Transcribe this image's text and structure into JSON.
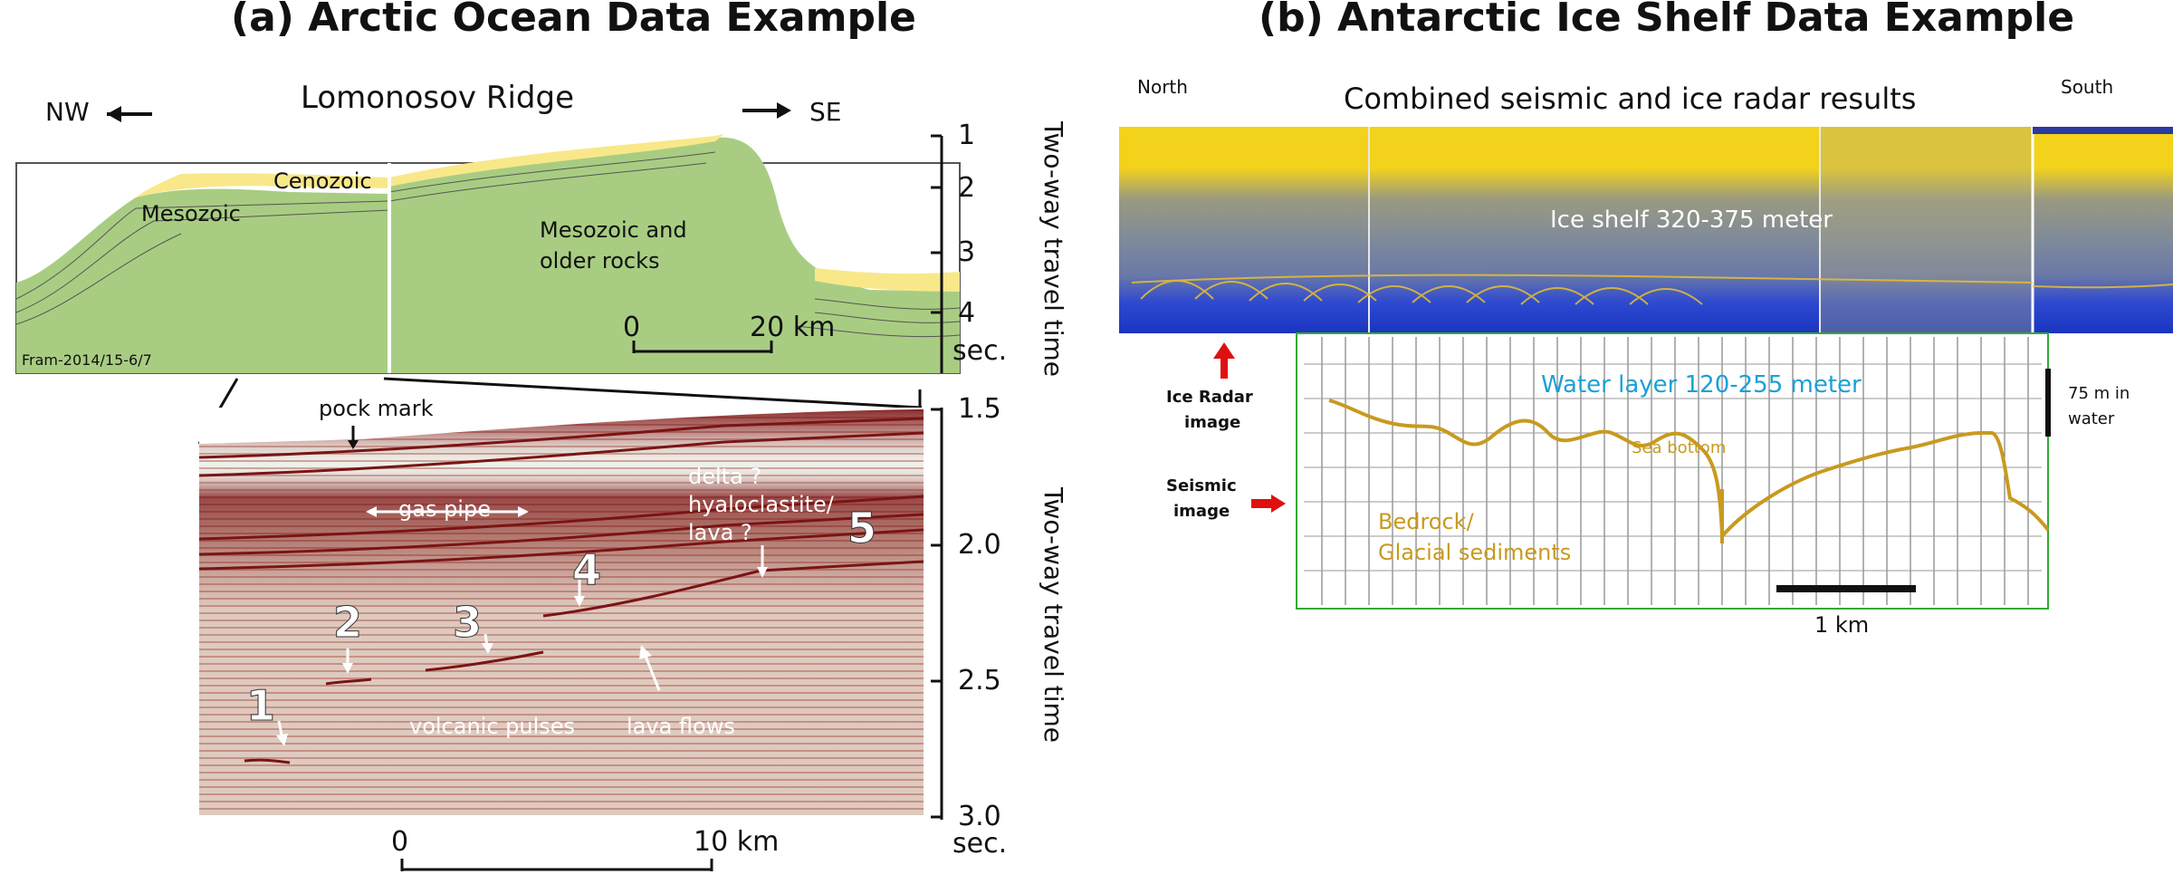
{
  "panel_a": {
    "title": "(a) Arctic Ocean Data Example",
    "top_section": {
      "title": "Lomonosov Ridge",
      "left_direction": "NW",
      "right_direction": "SE",
      "labels": {
        "cenozoic": "Cenozoic",
        "mesozoic": "Mesozoic",
        "mesozoic_older_line1": "Mesozoic and",
        "mesozoic_older_line2": "older rocks",
        "profile_id": "Fram-2014/15-6/7"
      },
      "scale_start": "0",
      "scale_end": "20 km",
      "axis_ticks": [
        "1",
        "2",
        "3",
        "4"
      ],
      "axis_unit": "sec.",
      "axis_title": "Two-way travel time"
    },
    "bottom_section": {
      "annotations": {
        "pock_mark": "pock mark",
        "gas_pipe": "gas pipe",
        "delta": "delta ?",
        "hyaloclastite": "hyaloclastite/",
        "lava_q": "lava ?",
        "volcanic_pulses": "volcanic pulses",
        "lava_flows": "lava flows"
      },
      "numbers": [
        "1",
        "2",
        "3",
        "4",
        "5"
      ],
      "scale_start": "0",
      "scale_end": "10 km",
      "axis_ticks": [
        "1.5",
        "2.0",
        "2.5",
        "3.0"
      ],
      "axis_unit": "sec.",
      "axis_title": "Two-way travel time"
    }
  },
  "panel_b": {
    "title": "(b) Antarctic Ice Shelf Data Example",
    "north_label": "North",
    "south_label": "South",
    "combined_title": "Combined seismic and ice radar results",
    "ice_shelf_label": "Ice shelf 320-375 meter",
    "ice_radar_label_line1": "Ice Radar",
    "ice_radar_label_line2": "image",
    "seismic_label_line1": "Seismic",
    "seismic_label_line2": "image",
    "water_layer_label": "Water layer 120-255 meter",
    "sea_bottom_label": "Sea bottom",
    "bedrock_line1": "Bedrock/",
    "bedrock_line2": "Glacial sediments",
    "water_scale_line1": "75 m in",
    "water_scale_line2": "water",
    "scale_label": "1 km",
    "colors": {
      "radar_yellow": "#f2d21b",
      "radar_blue": "#2040c8",
      "water_label": "#1aa0d8",
      "bottom_line": "#c89a1e",
      "arrow_red": "#e01010"
    }
  }
}
